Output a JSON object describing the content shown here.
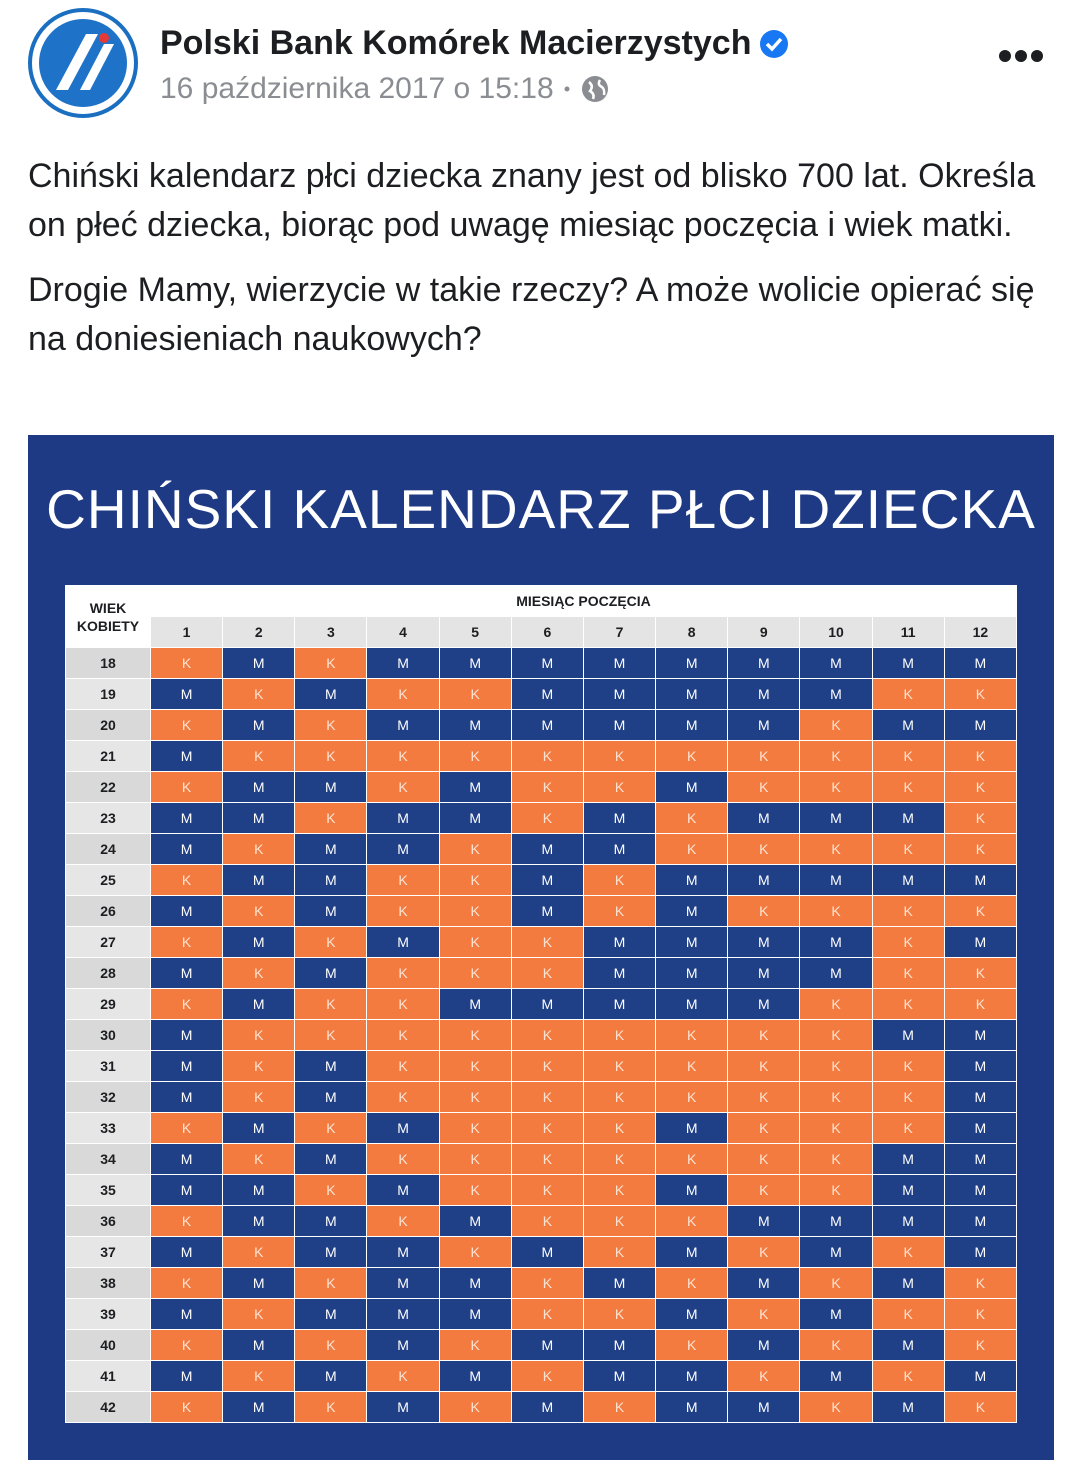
{
  "header": {
    "page_name": "Polski Bank Komórek Macierzystych",
    "date": "16 października 2017 o 15:18"
  },
  "post": {
    "paragraphs": [
      "Chiński kalendarz płci dziecka znany jest od blisko 700 lat. Określa on płeć dziecka, biorąc pod uwagę miesiąc poczęcia i wiek matki.",
      "Drogie Mamy, wierzycie w takie rzeczy? A może wolicie opierać się na doniesieniach naukowych?"
    ]
  },
  "image": {
    "title": "CHIŃSKI KALENDARZ PŁCI DZIECKA",
    "corner_label": [
      "WIEK",
      "KOBIETY"
    ],
    "month_header": "MIESIĄC POCZĘCIA",
    "months": [
      1,
      2,
      3,
      4,
      5,
      6,
      7,
      8,
      9,
      10,
      11,
      12
    ],
    "rows": [
      {
        "age": 18,
        "cells": [
          "K",
          "M",
          "K",
          "M",
          "M",
          "M",
          "M",
          "M",
          "M",
          "M",
          "M",
          "M"
        ]
      },
      {
        "age": 19,
        "cells": [
          "M",
          "K",
          "M",
          "K",
          "K",
          "M",
          "M",
          "M",
          "M",
          "M",
          "K",
          "K"
        ]
      },
      {
        "age": 20,
        "cells": [
          "K",
          "M",
          "K",
          "M",
          "M",
          "M",
          "M",
          "M",
          "M",
          "K",
          "M",
          "M"
        ]
      },
      {
        "age": 21,
        "cells": [
          "M",
          "K",
          "K",
          "K",
          "K",
          "K",
          "K",
          "K",
          "K",
          "K",
          "K",
          "K"
        ]
      },
      {
        "age": 22,
        "cells": [
          "K",
          "M",
          "M",
          "K",
          "M",
          "K",
          "K",
          "M",
          "K",
          "K",
          "K",
          "K"
        ]
      },
      {
        "age": 23,
        "cells": [
          "M",
          "M",
          "K",
          "M",
          "M",
          "K",
          "M",
          "K",
          "M",
          "M",
          "M",
          "K"
        ]
      },
      {
        "age": 24,
        "cells": [
          "M",
          "K",
          "M",
          "M",
          "K",
          "M",
          "M",
          "K",
          "K",
          "K",
          "K",
          "K"
        ]
      },
      {
        "age": 25,
        "cells": [
          "K",
          "M",
          "M",
          "K",
          "K",
          "M",
          "K",
          "M",
          "M",
          "M",
          "M",
          "M"
        ]
      },
      {
        "age": 26,
        "cells": [
          "M",
          "K",
          "M",
          "K",
          "K",
          "M",
          "K",
          "M",
          "K",
          "K",
          "K",
          "K"
        ]
      },
      {
        "age": 27,
        "cells": [
          "K",
          "M",
          "K",
          "M",
          "K",
          "K",
          "M",
          "M",
          "M",
          "M",
          "K",
          "M"
        ]
      },
      {
        "age": 28,
        "cells": [
          "M",
          "K",
          "M",
          "K",
          "K",
          "K",
          "M",
          "M",
          "M",
          "M",
          "K",
          "K"
        ]
      },
      {
        "age": 29,
        "cells": [
          "K",
          "M",
          "K",
          "K",
          "M",
          "M",
          "M",
          "M",
          "M",
          "K",
          "K",
          "K"
        ]
      },
      {
        "age": 30,
        "cells": [
          "M",
          "K",
          "K",
          "K",
          "K",
          "K",
          "K",
          "K",
          "K",
          "K",
          "M",
          "M"
        ]
      },
      {
        "age": 31,
        "cells": [
          "M",
          "K",
          "M",
          "K",
          "K",
          "K",
          "K",
          "K",
          "K",
          "K",
          "K",
          "M"
        ]
      },
      {
        "age": 32,
        "cells": [
          "M",
          "K",
          "M",
          "K",
          "K",
          "K",
          "K",
          "K",
          "K",
          "K",
          "K",
          "M"
        ]
      },
      {
        "age": 33,
        "cells": [
          "K",
          "M",
          "K",
          "M",
          "K",
          "K",
          "K",
          "M",
          "K",
          "K",
          "K",
          "M"
        ]
      },
      {
        "age": 34,
        "cells": [
          "M",
          "K",
          "M",
          "K",
          "K",
          "K",
          "K",
          "K",
          "K",
          "K",
          "M",
          "M"
        ]
      },
      {
        "age": 35,
        "cells": [
          "M",
          "M",
          "K",
          "M",
          "K",
          "K",
          "K",
          "M",
          "K",
          "K",
          "M",
          "M"
        ]
      },
      {
        "age": 36,
        "cells": [
          "K",
          "M",
          "M",
          "K",
          "M",
          "K",
          "K",
          "K",
          "M",
          "M",
          "M",
          "M"
        ]
      },
      {
        "age": 37,
        "cells": [
          "M",
          "K",
          "M",
          "M",
          "K",
          "M",
          "K",
          "M",
          "K",
          "M",
          "K",
          "M"
        ]
      },
      {
        "age": 38,
        "cells": [
          "K",
          "M",
          "K",
          "M",
          "M",
          "K",
          "M",
          "K",
          "M",
          "K",
          "M",
          "K"
        ]
      },
      {
        "age": 39,
        "cells": [
          "M",
          "K",
          "M",
          "M",
          "M",
          "K",
          "K",
          "M",
          "K",
          "M",
          "K",
          "K"
        ]
      },
      {
        "age": 40,
        "cells": [
          "K",
          "M",
          "K",
          "M",
          "K",
          "M",
          "M",
          "K",
          "M",
          "K",
          "M",
          "K"
        ]
      },
      {
        "age": 41,
        "cells": [
          "M",
          "K",
          "M",
          "K",
          "M",
          "K",
          "M",
          "M",
          "K",
          "M",
          "K",
          "M"
        ]
      },
      {
        "age": 42,
        "cells": [
          "K",
          "M",
          "K",
          "M",
          "K",
          "M",
          "K",
          "M",
          "M",
          "K",
          "M",
          "K"
        ]
      }
    ]
  }
}
